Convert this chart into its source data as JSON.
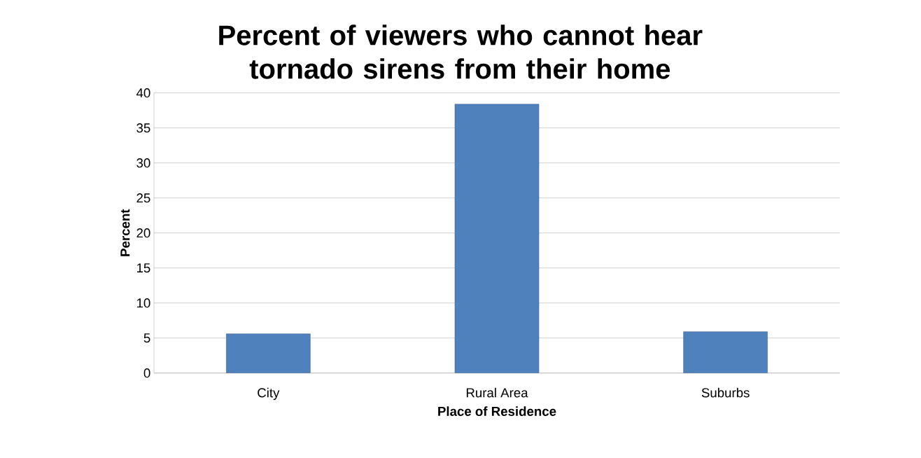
{
  "chart_data": {
    "type": "bar",
    "title": "Percent of viewers who cannot hear tornado sirens from their home",
    "xlabel": "Place of Residence",
    "ylabel": "Percent",
    "categories": [
      "City",
      "Rural Area",
      "Suburbs"
    ],
    "values": [
      5.6,
      38.4,
      5.9
    ],
    "color": "#4f81bd",
    "ylim": [
      0,
      40
    ],
    "yticks": [
      0,
      5,
      10,
      15,
      20,
      25,
      30,
      35,
      40
    ],
    "grid": "y"
  }
}
